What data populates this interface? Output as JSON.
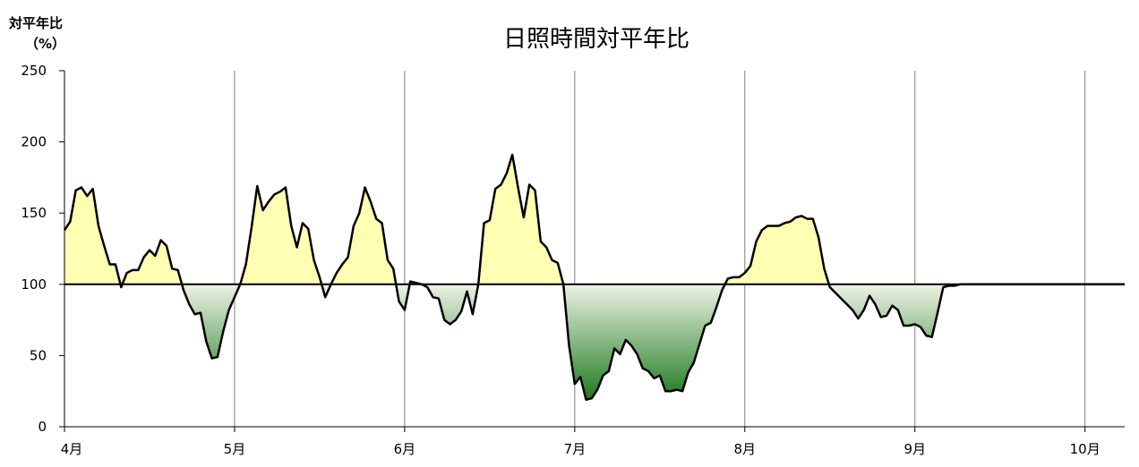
{
  "chart_data": {
    "type": "area",
    "title": "日照時間対平年比",
    "ylabel_line1": "対平年比",
    "ylabel_line2": "（%）",
    "xlabel": "",
    "baseline": 100,
    "ylim": [
      0,
      250
    ],
    "yticks": [
      0,
      50,
      100,
      150,
      200,
      250
    ],
    "xlim": [
      0,
      187
    ],
    "month_labels": [
      "4月",
      "5月",
      "6月",
      "7月",
      "8月",
      "9月",
      "10月"
    ],
    "month_starts": [
      0,
      30,
      60,
      90,
      120,
      150,
      180
    ],
    "grid": "vertical-month-lines",
    "colors": {
      "above": "#ffffb3",
      "below_light": "#e6efdc",
      "below_dark": "#1e7a1e",
      "line": "#000000"
    },
    "x": [
      0,
      1,
      2,
      3,
      4,
      5,
      6,
      7,
      8,
      9,
      10,
      11,
      12,
      13,
      14,
      15,
      16,
      17,
      18,
      19,
      20,
      21,
      22,
      23,
      24,
      25,
      26,
      27,
      28,
      29,
      30,
      31,
      32,
      33,
      34,
      35,
      36,
      37,
      38,
      39,
      40,
      41,
      42,
      43,
      44,
      45,
      46,
      47,
      48,
      49,
      50,
      51,
      52,
      53,
      54,
      55,
      56,
      57,
      58,
      59,
      60,
      61,
      62,
      63,
      64,
      65,
      66,
      67,
      68,
      69,
      70,
      71,
      72,
      73,
      74,
      75,
      76,
      77,
      78,
      79,
      80,
      81,
      82,
      83,
      84,
      85,
      86,
      87,
      88,
      89,
      90,
      91,
      92,
      93,
      94,
      95,
      96,
      97,
      98,
      99,
      100,
      101,
      102,
      103,
      104,
      105,
      106,
      107,
      108,
      109,
      110,
      111,
      112,
      113,
      114,
      115,
      116,
      117,
      118,
      119,
      120,
      121,
      122,
      123,
      124,
      125,
      126,
      127,
      128,
      129,
      130,
      131,
      132,
      133,
      134,
      135,
      136,
      137,
      138,
      139,
      140,
      141,
      142,
      143,
      144,
      145,
      146,
      147,
      148,
      149,
      150,
      151,
      152,
      153,
      154,
      155,
      156,
      157,
      158,
      159,
      160,
      161,
      162,
      163,
      164,
      165,
      166,
      167,
      168,
      169,
      170,
      171,
      172,
      173,
      174,
      175,
      176,
      177,
      178,
      179,
      180,
      181,
      182,
      183,
      184,
      185,
      186,
      187
    ],
    "values": [
      138,
      144,
      166,
      168,
      162,
      167,
      141,
      127,
      114,
      114,
      98,
      108,
      110,
      110,
      119,
      124,
      120,
      131,
      127,
      111,
      110,
      96,
      86,
      79,
      80,
      60,
      48,
      49,
      67,
      82,
      91,
      100,
      114,
      140,
      169,
      152,
      158,
      163,
      165,
      168,
      141,
      126,
      143,
      139,
      117,
      105,
      91,
      100,
      108,
      114,
      119,
      141,
      150,
      168,
      158,
      146,
      143,
      117,
      111,
      88,
      82,
      102,
      101,
      100,
      98,
      91,
      90,
      75,
      72,
      75,
      81,
      95,
      79,
      100,
      143,
      145,
      167,
      170,
      178,
      191,
      168,
      147,
      170,
      166,
      130,
      126,
      117,
      115,
      100,
      57,
      30,
      35,
      19,
      20,
      26,
      36,
      39,
      55,
      51,
      61,
      57,
      51,
      41,
      39,
      34,
      36,
      25,
      25,
      26,
      25,
      38,
      45,
      58,
      71,
      73,
      84,
      96,
      104,
      105,
      105,
      108,
      113,
      130,
      138,
      141,
      141,
      141,
      143,
      144,
      147,
      148,
      146,
      146,
      133,
      111,
      98,
      94,
      90,
      86,
      82,
      76,
      82,
      92,
      86,
      77,
      78,
      85,
      82,
      71,
      71,
      72,
      70,
      64,
      63,
      80,
      98,
      99,
      99,
      100,
      100,
      100,
      100,
      100,
      100,
      100,
      100,
      100,
      100,
      100,
      100,
      100,
      100,
      100,
      100,
      100,
      100,
      100,
      100,
      100,
      100,
      100,
      100,
      100,
      100,
      100,
      100,
      100,
      100
    ]
  }
}
